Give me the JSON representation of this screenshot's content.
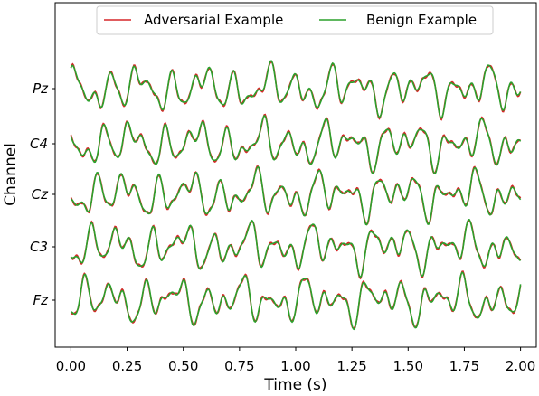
{
  "chart_data": {
    "type": "line",
    "title": "",
    "xlabel": "Time (s)",
    "ylabel": "Channel",
    "xlim": [
      -0.07,
      2.07
    ],
    "x_ticks": [
      "0.00",
      "0.25",
      "0.50",
      "0.75",
      "1.00",
      "1.25",
      "1.50",
      "1.75",
      "2.00"
    ],
    "x_tick_values": [
      0,
      0.25,
      0.5,
      0.75,
      1.0,
      1.25,
      1.5,
      1.75,
      2.0
    ],
    "channels": [
      "Pz",
      "C4",
      "Cz",
      "C3",
      "Fz"
    ],
    "legend": {
      "position": "top-center",
      "columns": 2
    },
    "grid": false,
    "series": [
      {
        "name": "Adversarial Example",
        "color": "#d62728"
      },
      {
        "name": "Benign Example",
        "color": "#2ca02c"
      }
    ]
  }
}
